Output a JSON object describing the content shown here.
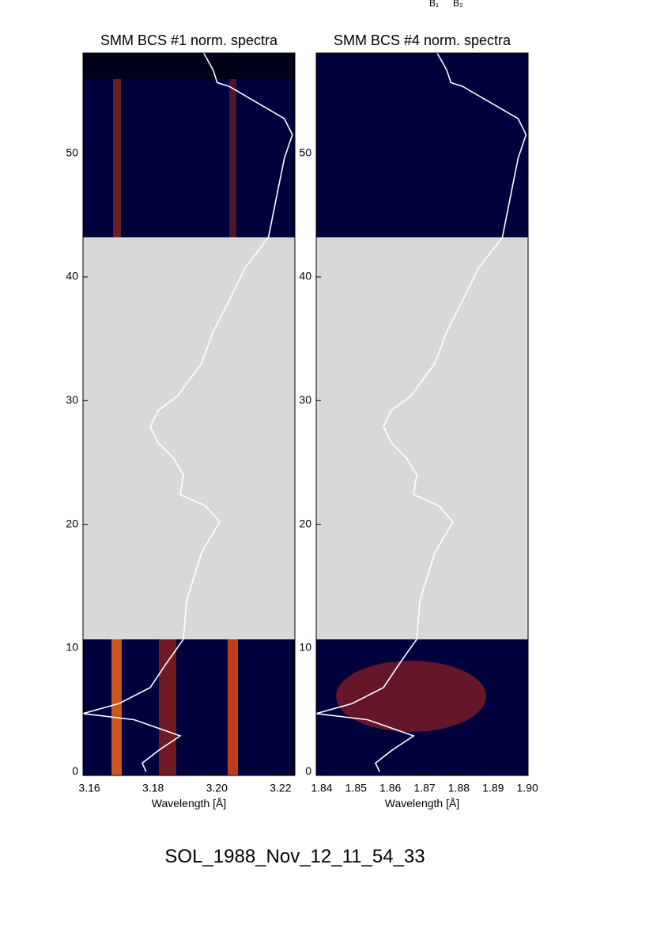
{
  "annotations": [
    "B₁",
    "B₂"
  ],
  "footer": "SOL_1988_Nov_12_11_54_33",
  "chart_data": [
    {
      "type": "line",
      "title": "SMM BCS #1 norm. spectra",
      "x_label": "Wavelength [Å]",
      "xlim": [
        3.158,
        3.2245
      ],
      "xticks": [
        3.16,
        3.18,
        {
          "value": 3.2,
          "label": "3.20"
        },
        3.22
      ],
      "ylim": [
        -0.3,
        58.1
      ],
      "yticks": [
        0,
        10,
        20,
        30,
        40,
        50
      ],
      "gap": [
        10.7,
        43.2
      ],
      "color": "#ffffff",
      "y": [
        0,
        0.7,
        1.7,
        2.9,
        4.2,
        4.7,
        5.5,
        6.8,
        8.7,
        10.7,
        13.8,
        17.7,
        20.2,
        21.5,
        22.4,
        24.0,
        25.3,
        26.6,
        27.9,
        29.2,
        30.4,
        33.0,
        35.6,
        38.1,
        40.7,
        43.2,
        46.4,
        49.6,
        51.5,
        52.8,
        55.4,
        55.7,
        56.7,
        58.1
      ],
      "values": [
        3.1778,
        3.1766,
        3.1816,
        3.1885,
        3.1741,
        3.158,
        3.1692,
        3.1791,
        3.184,
        3.1895,
        3.1905,
        3.1952,
        3.2009,
        3.1964,
        3.1885,
        3.1895,
        3.1865,
        3.1816,
        3.1791,
        3.1816,
        3.1878,
        3.1952,
        3.1989,
        3.2039,
        3.2088,
        3.2162,
        3.2187,
        3.2212,
        3.2237,
        3.2212,
        3.2039,
        3.2001,
        3.1989,
        3.1959
      ]
    },
    {
      "type": "line",
      "title": "SMM BCS #4 norm. spectra",
      "x_label": "Wavelength [Å]",
      "xlim": [
        1.8384,
        1.9002
      ],
      "xticks": [
        1.84,
        1.85,
        1.86,
        1.87,
        1.88,
        1.89,
        {
          "value": 1.9,
          "label": "1.90"
        }
      ],
      "ylim": [
        -0.3,
        58.1
      ],
      "yticks": [
        0,
        10,
        20,
        30,
        40,
        50
      ],
      "gap": [
        10.7,
        43.2
      ],
      "color": "#ffffff",
      "y": [
        0,
        0.7,
        1.7,
        2.9,
        4.2,
        4.7,
        5.5,
        6.8,
        8.7,
        10.7,
        13.8,
        17.7,
        20.2,
        21.5,
        22.4,
        24.0,
        25.3,
        26.6,
        27.9,
        29.2,
        30.4,
        33.0,
        35.6,
        38.1,
        40.7,
        43.2,
        46.4,
        49.6,
        51.5,
        52.8,
        55.4,
        55.7,
        56.7,
        58.1
      ],
      "values": [
        1.8569,
        1.8557,
        1.8603,
        1.8668,
        1.8534,
        1.8384,
        1.8488,
        1.858,
        1.8626,
        1.8677,
        1.8686,
        1.873,
        1.8783,
        1.8742,
        1.8668,
        1.8677,
        1.8649,
        1.8603,
        1.858,
        1.8603,
        1.8661,
        1.873,
        1.8765,
        1.8811,
        1.8857,
        1.8927,
        1.895,
        1.8973,
        1.8996,
        1.8973,
        1.8811,
        1.8777,
        1.8765,
        1.8737
      ]
    }
  ]
}
